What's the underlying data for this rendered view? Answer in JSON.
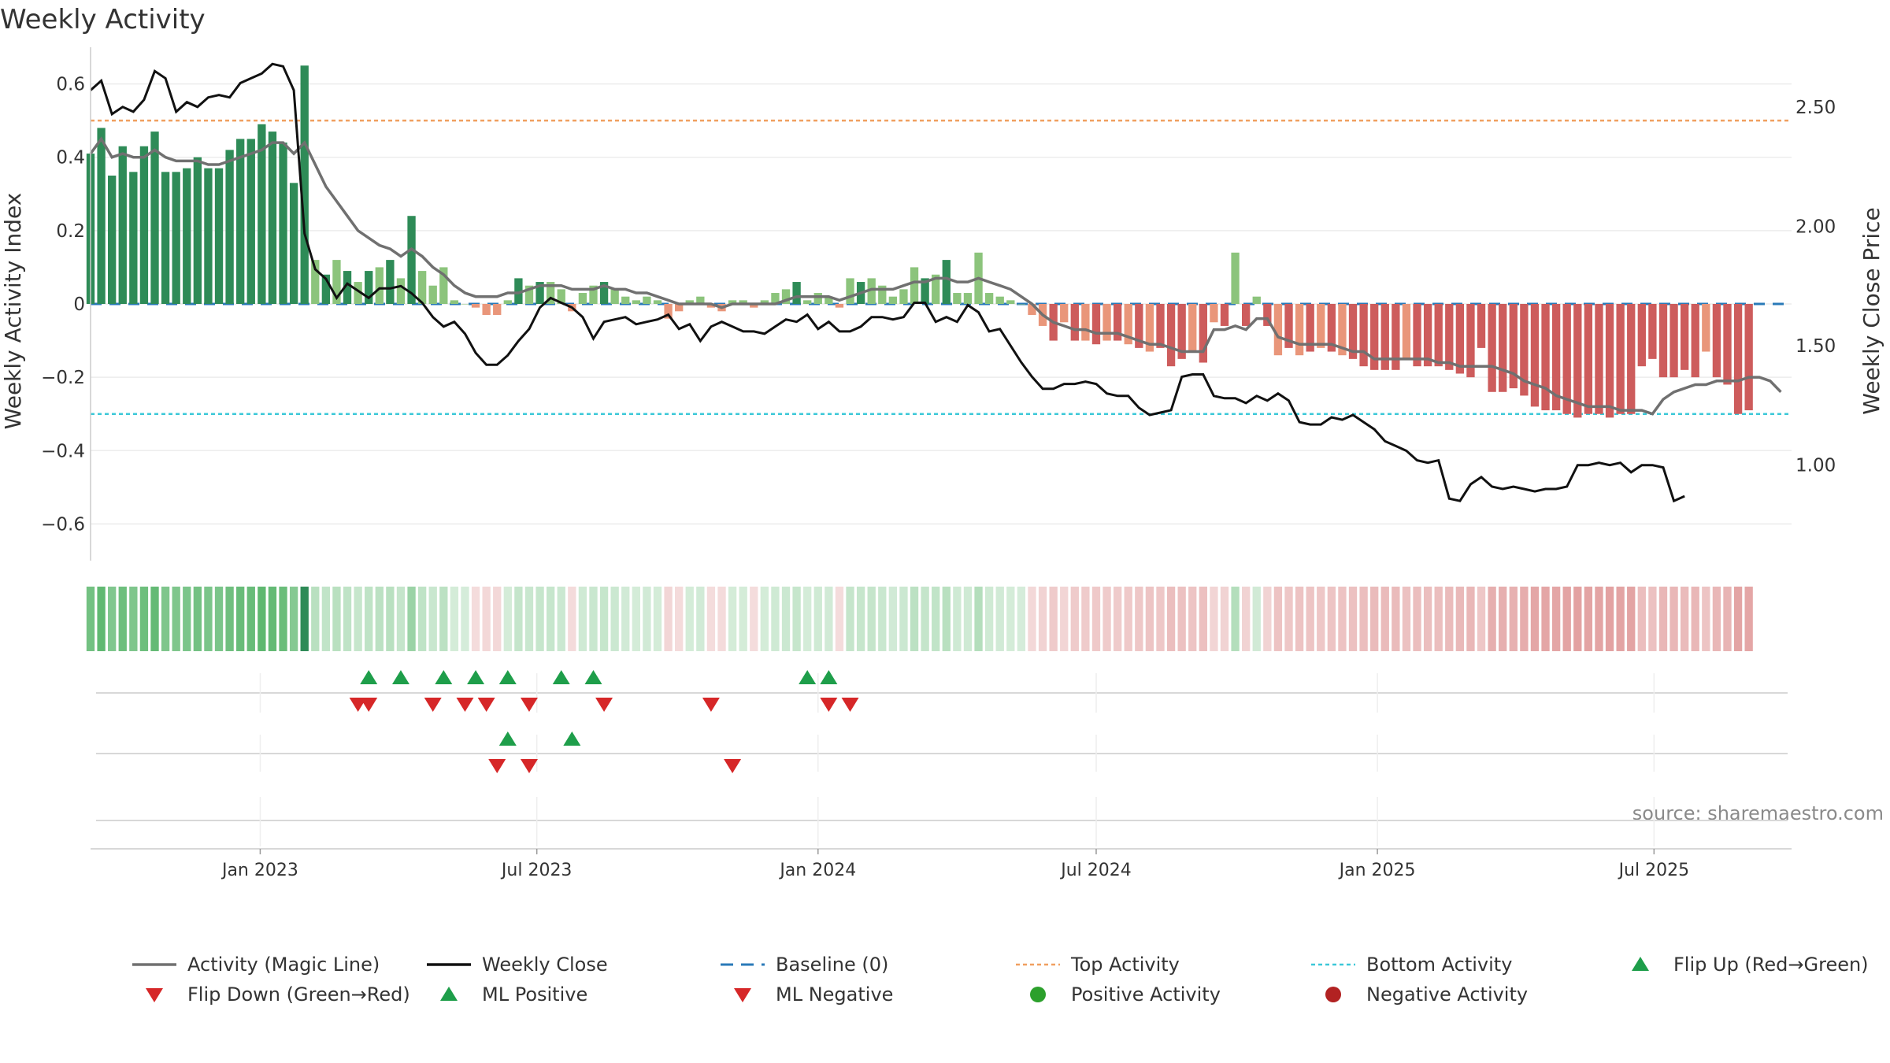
{
  "chart_data": {
    "type": "bar",
    "title": "Weekly Activity",
    "ylabel_left": "Weekly Activity Index",
    "ylabel_right": "Weekly Close Price",
    "source": "source: sharemaestro.com",
    "x_range": [
      "2022-09-12",
      "2025-09-29"
    ],
    "y_left_range": [
      -0.7,
      0.7
    ],
    "y_right_range": [
      0.6,
      2.75
    ],
    "y_left_ticks": [
      0.6,
      0.4,
      0.2,
      0,
      -0.2,
      -0.4,
      -0.6
    ],
    "y_left_tick_labels": [
      "0.6",
      "0.4",
      "0.2",
      "0",
      "−0.2",
      "−0.4",
      "−0.6"
    ],
    "y_right_ticks": [
      2.5,
      2.0,
      1.5,
      1.0
    ],
    "y_right_tick_labels": [
      "2.50",
      "2.00",
      "1.50",
      "1.00"
    ],
    "x_ticks": [
      {
        "date": "2023-01-01",
        "label": "Jan 2023"
      },
      {
        "date": "2023-07-01",
        "label": "Jul 2023"
      },
      {
        "date": "2024-01-01",
        "label": "Jan 2024"
      },
      {
        "date": "2024-07-01",
        "label": "Jul 2024"
      },
      {
        "date": "2025-01-01",
        "label": "Jan 2025"
      },
      {
        "date": "2025-07-01",
        "label": "Jul 2025"
      }
    ],
    "reference_lines": {
      "top_activity": 0.5,
      "bottom_activity": -0.3,
      "baseline": 0
    },
    "start_date": "2022-09-12",
    "week_days": 7,
    "activity": [
      0.41,
      0.48,
      0.35,
      0.43,
      0.36,
      0.43,
      0.47,
      0.36,
      0.36,
      0.37,
      0.4,
      0.37,
      0.37,
      0.42,
      0.45,
      0.45,
      0.49,
      0.47,
      0.44,
      0.33,
      0.65,
      0.12,
      0.08,
      0.12,
      0.09,
      0.06,
      0.09,
      0.1,
      0.12,
      0.07,
      0.24,
      0.09,
      0.05,
      0.1,
      0.01,
      0.0,
      -0.01,
      -0.03,
      -0.03,
      0.01,
      0.07,
      0.05,
      0.06,
      0.06,
      0.04,
      -0.02,
      0.03,
      0.05,
      0.06,
      0.04,
      0.02,
      0.01,
      0.02,
      0.01,
      -0.04,
      -0.02,
      0.01,
      0.02,
      -0.01,
      -0.02,
      0.01,
      0.01,
      -0.01,
      0.01,
      0.03,
      0.04,
      0.06,
      0.01,
      0.03,
      0.02,
      -0.01,
      0.07,
      0.06,
      0.07,
      0.05,
      0.02,
      0.04,
      0.1,
      0.07,
      0.08,
      0.12,
      0.03,
      0.03,
      0.14,
      0.03,
      0.02,
      0.01,
      0.0,
      -0.03,
      -0.06,
      -0.1,
      -0.05,
      -0.1,
      -0.1,
      -0.11,
      -0.1,
      -0.1,
      -0.11,
      -0.12,
      -0.13,
      -0.12,
      -0.17,
      -0.15,
      -0.13,
      -0.16,
      -0.05,
      -0.06,
      0.14,
      -0.06,
      0.02,
      -0.06,
      -0.14,
      -0.12,
      -0.14,
      -0.13,
      -0.12,
      -0.13,
      -0.14,
      -0.15,
      -0.17,
      -0.18,
      -0.18,
      -0.18,
      -0.15,
      -0.17,
      -0.17,
      -0.17,
      -0.18,
      -0.19,
      -0.2,
      -0.12,
      -0.24,
      -0.24,
      -0.23,
      -0.25,
      -0.28,
      -0.29,
      -0.29,
      -0.3,
      -0.31,
      -0.3,
      -0.3,
      -0.31,
      -0.3,
      -0.3,
      -0.17,
      -0.15,
      -0.2,
      -0.2,
      -0.18,
      -0.2,
      -0.13,
      -0.2,
      -0.22,
      -0.3,
      -0.29
    ],
    "magic_line": [
      0.41,
      0.45,
      0.4,
      0.41,
      0.4,
      0.4,
      0.42,
      0.4,
      0.39,
      0.39,
      0.39,
      0.38,
      0.38,
      0.39,
      0.4,
      0.41,
      0.42,
      0.44,
      0.44,
      0.41,
      0.44,
      0.38,
      0.32,
      0.28,
      0.24,
      0.2,
      0.18,
      0.16,
      0.15,
      0.13,
      0.15,
      0.13,
      0.1,
      0.08,
      0.05,
      0.03,
      0.02,
      0.02,
      0.02,
      0.03,
      0.03,
      0.04,
      0.05,
      0.05,
      0.05,
      0.04,
      0.04,
      0.04,
      0.05,
      0.04,
      0.04,
      0.03,
      0.03,
      0.02,
      0.01,
      0.0,
      0.0,
      0.0,
      0.0,
      -0.01,
      0.0,
      0.0,
      0.0,
      0.0,
      0.0,
      0.01,
      0.02,
      0.02,
      0.02,
      0.02,
      0.01,
      0.02,
      0.03,
      0.04,
      0.04,
      0.04,
      0.05,
      0.06,
      0.06,
      0.07,
      0.07,
      0.06,
      0.06,
      0.07,
      0.06,
      0.05,
      0.04,
      0.02,
      0.0,
      -0.03,
      -0.05,
      -0.06,
      -0.07,
      -0.07,
      -0.08,
      -0.08,
      -0.08,
      -0.09,
      -0.1,
      -0.11,
      -0.11,
      -0.12,
      -0.13,
      -0.13,
      -0.13,
      -0.07,
      -0.07,
      -0.06,
      -0.07,
      -0.04,
      -0.04,
      -0.09,
      -0.1,
      -0.11,
      -0.11,
      -0.11,
      -0.11,
      -0.12,
      -0.13,
      -0.13,
      -0.15,
      -0.15,
      -0.15,
      -0.15,
      -0.15,
      -0.15,
      -0.16,
      -0.16,
      -0.17,
      -0.17,
      -0.17,
      -0.17,
      -0.18,
      -0.19,
      -0.21,
      -0.22,
      -0.23,
      -0.25,
      -0.26,
      -0.27,
      -0.28,
      -0.28,
      -0.28,
      -0.29,
      -0.29,
      -0.29,
      -0.3,
      -0.26,
      -0.24,
      -0.23,
      -0.22,
      -0.22,
      -0.21,
      -0.21,
      -0.21,
      -0.2,
      -0.2,
      -0.21,
      -0.24
    ],
    "close": [
      2.57,
      2.61,
      2.47,
      2.5,
      2.48,
      2.53,
      2.65,
      2.62,
      2.48,
      2.52,
      2.5,
      2.54,
      2.55,
      2.54,
      2.6,
      2.62,
      2.64,
      2.68,
      2.67,
      2.57,
      1.97,
      1.82,
      1.78,
      1.7,
      1.76,
      1.73,
      1.7,
      1.74,
      1.74,
      1.75,
      1.72,
      1.68,
      1.62,
      1.58,
      1.6,
      1.55,
      1.47,
      1.42,
      1.42,
      1.46,
      1.52,
      1.57,
      1.66,
      1.7,
      1.68,
      1.66,
      1.62,
      1.53,
      1.6,
      1.61,
      1.62,
      1.59,
      1.6,
      1.61,
      1.63,
      1.57,
      1.59,
      1.52,
      1.58,
      1.6,
      1.58,
      1.56,
      1.56,
      1.55,
      1.58,
      1.61,
      1.6,
      1.63,
      1.57,
      1.6,
      1.56,
      1.56,
      1.58,
      1.62,
      1.62,
      1.61,
      1.62,
      1.68,
      1.68,
      1.6,
      1.62,
      1.6,
      1.67,
      1.64,
      1.56,
      1.57,
      1.5,
      1.43,
      1.37,
      1.32,
      1.32,
      1.34,
      1.34,
      1.35,
      1.34,
      1.3,
      1.29,
      1.29,
      1.24,
      1.21,
      1.22,
      1.23,
      1.37,
      1.38,
      1.38,
      1.29,
      1.28,
      1.28,
      1.26,
      1.29,
      1.27,
      1.3,
      1.27,
      1.18,
      1.17,
      1.17,
      1.2,
      1.19,
      1.21,
      1.18,
      1.15,
      1.1,
      1.08,
      1.06,
      1.02,
      1.01,
      1.02,
      0.86,
      0.85,
      0.92,
      0.95,
      0.91,
      0.9,
      0.91,
      0.9,
      0.89,
      0.9,
      0.9,
      0.91,
      1.0,
      1.0,
      1.01,
      1.0,
      1.01,
      0.97,
      1.0,
      1.0,
      0.99,
      0.85,
      0.87
    ],
    "flip_up": [
      26,
      29,
      33,
      36,
      39,
      44,
      47,
      67,
      69
    ],
    "flip_down": [
      25,
      26,
      32,
      35,
      37,
      41,
      48,
      58,
      69,
      71
    ],
    "ml_positive": [
      39,
      45
    ],
    "ml_negative": [
      38,
      41,
      60
    ],
    "legend": [
      {
        "label": "Activity (Magic Line)",
        "kind": "line",
        "color": "#707070"
      },
      {
        "label": "Weekly Close",
        "kind": "line",
        "color": "#111111"
      },
      {
        "label": "Baseline (0)",
        "kind": "dashed",
        "color": "#2a7ab8"
      },
      {
        "label": "Top Activity",
        "kind": "dotted",
        "color": "#f0a060"
      },
      {
        "label": "Bottom Activity",
        "kind": "dotted",
        "color": "#3cc8d8"
      },
      {
        "label": "Flip Up (Red→Green)",
        "kind": "tri-up",
        "color": "#1e9e4a"
      },
      {
        "label": "Flip Down (Green→Red)",
        "kind": "tri-down",
        "color": "#d62728"
      },
      {
        "label": "ML Positive",
        "kind": "tri-up",
        "color": "#1e9e4a"
      },
      {
        "label": "ML Negative",
        "kind": "tri-down",
        "color": "#d62728"
      },
      {
        "label": "Positive Activity",
        "kind": "dot",
        "color": "#2ca02c"
      },
      {
        "label": "Negative Activity",
        "kind": "dot",
        "color": "#b22222"
      }
    ],
    "colors": {
      "pos_strong": "#2e8b57",
      "pos_light": "#8cc47c",
      "neg_strong": "#cd5c5c",
      "neg_light": "#e9967a",
      "magic_line": "#707070",
      "close": "#111111",
      "baseline": "#2a7ab8",
      "top": "#f0a060",
      "bottom": "#3cc8d8",
      "up": "#1e9e4a",
      "down": "#d62728"
    }
  }
}
